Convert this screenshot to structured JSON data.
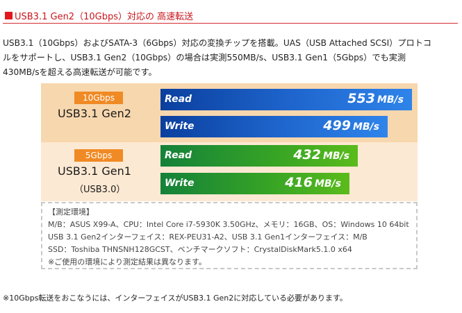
{
  "heading": {
    "title": "USB3.1 Gen2（10Gbps）対応の 高速転送"
  },
  "intro": {
    "lines": [
      "USB3.1（10Gbps）およびSATA-3（6Gbps）対応の変換チップを搭載。UAS（USB Attached SCSI）プロトコ",
      "ルをサポートし、USB3.1 Gen2（10Gbps）の場合は実測550MB/s、USB3.1 Gen1（5Gbps）でも実測",
      "430MB/sを超える高速転送が可能です。"
    ]
  },
  "speed": {
    "colors": {
      "gen2_band": "#f7d7ae",
      "gen1_band": "#fce9d3",
      "badge": "#f08a24",
      "blue_bar": "#1f67cf",
      "green_bar": "#38a524"
    },
    "gen2": {
      "badge": "10Gbps",
      "name": "USB3.1 Gen2",
      "read": {
        "label": "Read",
        "value": "553",
        "unit": "MB/s"
      },
      "write": {
        "label": "Write",
        "value": "499",
        "unit": "MB/s"
      }
    },
    "gen1": {
      "badge": "5Gbps",
      "name": "USB3.1 Gen1",
      "alias": "（USB3.0）",
      "read": {
        "label": "Read",
        "value": "432",
        "unit": "MB/s"
      },
      "write": {
        "label": "Write",
        "value": "416",
        "unit": "MB/s"
      }
    }
  },
  "env": {
    "title": "【測定環境】",
    "lines": [
      "M/B：ASUS X99-A、CPU：Intel Core i7-5930K 3.50GHz、メモリ：16GB、OS：Windows 10 64bit",
      "USB 3.1 Gen2インターフェイス：REX-PEU31-A2、USB 3.1 Gen1インターフェイス：M/B",
      "SSD：Toshiba THNSNH128GCST、ベンチマークソフト：CrystalDiskMark5.1.0 x64",
      "※ご使用の環境により測定結果は異なります。"
    ]
  },
  "footnote": "※10Gbps転送をおこなうには、インターフェイスがUSB3.1 Gen2に対応している必要があります。"
}
